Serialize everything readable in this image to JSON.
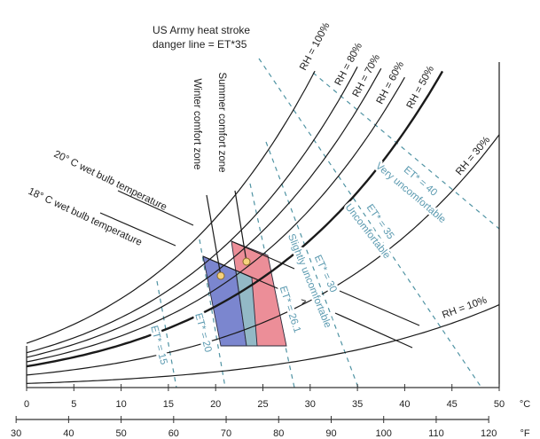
{
  "annotation": {
    "line1": "US Army heat stroke",
    "line2": "danger line = ET*35"
  },
  "zones": {
    "winter": "Winter comfort zone",
    "summer": "Summer comfort zone"
  },
  "wet_bulb": {
    "t20": "20° C wet bulb temperature",
    "t18": "18° C wet bulb temperature"
  },
  "rh_curves": [
    {
      "rh": 100,
      "label": "RH = 100%"
    },
    {
      "rh": 80,
      "label": "RH = 80%"
    },
    {
      "rh": 70,
      "label": "RH = 70%"
    },
    {
      "rh": 60,
      "label": "RH = 60%"
    },
    {
      "rh": 50,
      "label": "RH = 50%"
    },
    {
      "rh": 30,
      "label": "RH = 30%"
    },
    {
      "rh": 10,
      "label": "RH = 10%"
    }
  ],
  "et_lines": [
    {
      "value": 15,
      "label": "ET* = 15"
    },
    {
      "value": 20,
      "label": "ET* = 20"
    },
    {
      "value": 26.1,
      "label": "ET* = 26.1"
    },
    {
      "value": 30,
      "label": "ET* = 30"
    },
    {
      "value": 35,
      "label": "ET* = 35"
    },
    {
      "value": 40,
      "label": "ET* = 40"
    }
  ],
  "comfort_labels": {
    "slight": "Slightly uncomfortable",
    "uncomfortable": "Uncomfortable",
    "very": "Very uncomfortable",
    "marker": "^"
  },
  "axes": {
    "celsius": {
      "unit": "°C",
      "ticks": [
        0,
        5,
        10,
        15,
        20,
        25,
        30,
        35,
        40,
        45,
        50
      ]
    },
    "fahrenheit": {
      "unit": "°F",
      "ticks": [
        30,
        40,
        50,
        60,
        70,
        80,
        90,
        100,
        110,
        120
      ]
    }
  },
  "colors": {
    "winter_zone": "#7b86cf",
    "summer_zone": "#ec8e98",
    "overlap_zone": "#93b9c6",
    "et_lines": "#4f93a3",
    "et_text": "#5b9ab0",
    "comfort_point": "#f6d27c"
  }
}
